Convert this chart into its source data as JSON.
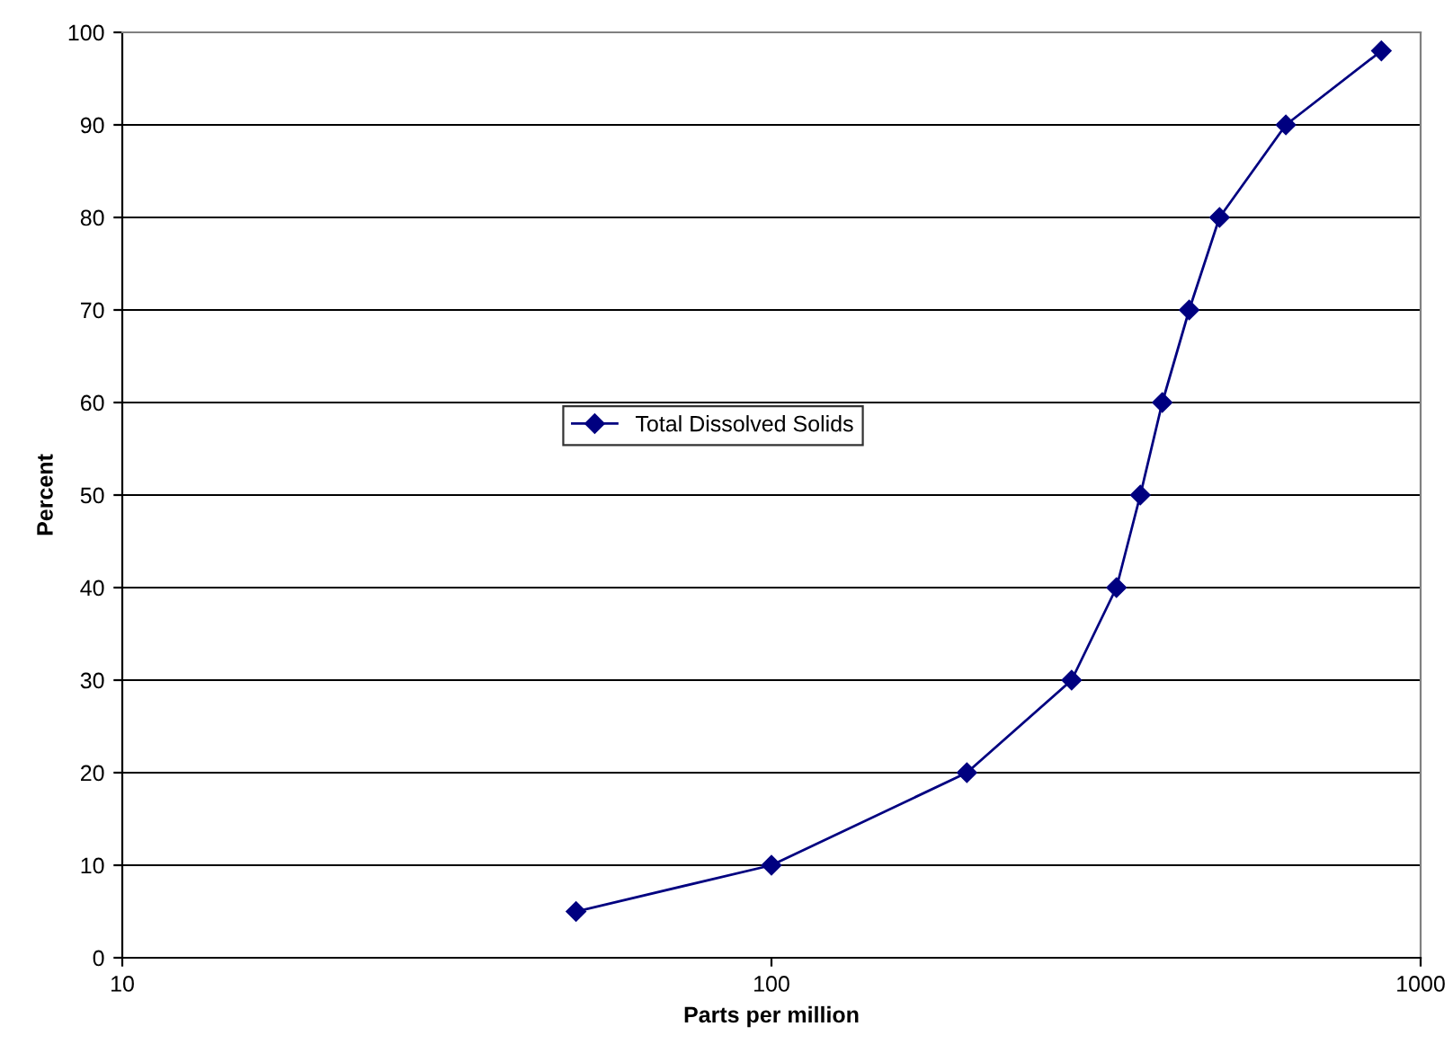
{
  "chart_data": {
    "type": "line",
    "xlabel": "Parts per million",
    "ylabel": "Percent",
    "x": [
      50,
      100,
      200,
      290,
      340,
      370,
      400,
      440,
      490,
      620,
      870
    ],
    "series": [
      {
        "name": "Total Dissolved Solids",
        "color": "#000080",
        "values": [
          5,
          10,
          20,
          30,
          40,
          50,
          60,
          70,
          80,
          90,
          98
        ]
      }
    ],
    "log": "x",
    "xlim": [
      10,
      1000
    ],
    "xticks": [
      10,
      100,
      1000
    ],
    "ylim": [
      0,
      100
    ],
    "yticks": [
      0,
      10,
      20,
      30,
      40,
      50,
      60,
      70,
      80,
      90,
      100
    ],
    "grid": "y",
    "legend": "center",
    "marker": "diamond"
  }
}
